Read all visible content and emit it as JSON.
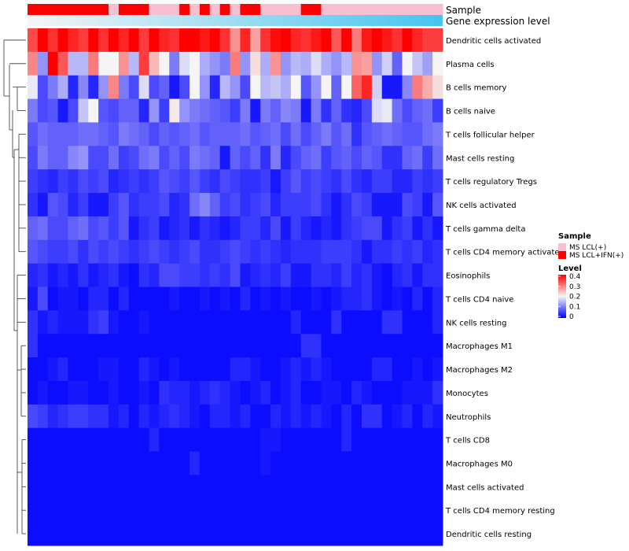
{
  "chart_data": {
    "type": "heatmap",
    "annotation_rows": [
      {
        "label": "Sample",
        "values": [
          "IFN",
          "IFN",
          "IFN",
          "IFN",
          "IFN",
          "IFN",
          "IFN",
          "IFN",
          "LCL",
          "IFN",
          "IFN",
          "IFN",
          "LCL",
          "LCL",
          "LCL",
          "IFN",
          "LCL",
          "IFN",
          "LCL",
          "IFN",
          "LCL",
          "IFN",
          "IFN",
          "LCL",
          "LCL",
          "LCL",
          "LCL",
          "IFN",
          "IFN",
          "LCL",
          "LCL",
          "LCL",
          "LCL",
          "LCL",
          "LCL",
          "LCL",
          "LCL",
          "LCL",
          "LCL",
          "LCL",
          "LCL"
        ]
      },
      {
        "label": "Gene expression level",
        "gradient": [
          "#f5f5f5",
          "#45c4ef"
        ]
      }
    ],
    "rows": [
      "Dendritic cells activated",
      "Plasma cells",
      "B cells memory",
      "B cells naive",
      "T cells follicular helper",
      "Mast cells resting",
      "T cells regulatory  Tregs",
      "NK cells activated",
      "T cells gamma delta",
      "T cells CD4 memory activated",
      "Eosinophils",
      "T cells CD4 naive",
      "NK cells resting",
      "Macrophages M1",
      "Macrophages M2",
      "Monocytes",
      "Neutrophils",
      "T cells CD8",
      "Macrophages M0",
      "Mast cells activated",
      "T cells CD4 memory resting",
      "Dendritic cells resting"
    ],
    "values": [
      [
        0.34,
        0.4,
        0.36,
        0.4,
        0.37,
        0.35,
        0.4,
        0.36,
        0.4,
        0.37,
        0.4,
        0.35,
        0.4,
        0.37,
        0.36,
        0.4,
        0.4,
        0.38,
        0.4,
        0.36,
        0.28,
        0.37,
        0.27,
        0.36,
        0.39,
        0.4,
        0.37,
        0.36,
        0.38,
        0.4,
        0.33,
        0.4,
        0.3,
        0.38,
        0.4,
        0.38,
        0.36,
        0.4,
        0.37,
        0.35,
        0.35
      ],
      [
        0.29,
        0.12,
        0.4,
        0.33,
        0.15,
        0.15,
        0.3,
        0.2,
        0.2,
        0.28,
        0.15,
        0.35,
        0.25,
        0.2,
        0.1,
        0.18,
        0.2,
        0.14,
        0.12,
        0.1,
        0.3,
        0.12,
        0.22,
        0.14,
        0.28,
        0.12,
        0.15,
        0.14,
        0.18,
        0.14,
        0.12,
        0.15,
        0.28,
        0.27,
        0.12,
        0.17,
        0.08,
        0.2,
        0.16,
        0.13,
        0.2
      ],
      [
        0.19,
        0.06,
        0.1,
        0.14,
        0.03,
        0.11,
        0.03,
        0.12,
        0.29,
        0.1,
        0.06,
        0.18,
        0.06,
        0.08,
        0.02,
        0.06,
        0.2,
        0.12,
        0.03,
        0.15,
        0.12,
        0.06,
        0.2,
        0.15,
        0.16,
        0.14,
        0.2,
        0.07,
        0.12,
        0.2,
        0.08,
        0.2,
        0.32,
        0.37,
        0.17,
        0.02,
        0.02,
        0.11,
        0.3,
        0.26,
        0.22
      ],
      [
        0.1,
        0.06,
        0.07,
        0.02,
        0.06,
        0.16,
        0.2,
        0.07,
        0.06,
        0.08,
        0.08,
        0.03,
        0.12,
        0.05,
        0.21,
        0.12,
        0.1,
        0.09,
        0.08,
        0.07,
        0.05,
        0.1,
        0.02,
        0.1,
        0.08,
        0.11,
        0.1,
        0.02,
        0.1,
        0.04,
        0.08,
        0.04,
        0.03,
        0.06,
        0.18,
        0.19,
        0.09,
        0.06,
        0.08,
        0.09,
        0.05
      ],
      [
        0.07,
        0.09,
        0.08,
        0.08,
        0.08,
        0.09,
        0.09,
        0.08,
        0.07,
        0.1,
        0.09,
        0.08,
        0.06,
        0.08,
        0.07,
        0.08,
        0.09,
        0.07,
        0.08,
        0.08,
        0.08,
        0.09,
        0.07,
        0.08,
        0.09,
        0.06,
        0.09,
        0.06,
        0.08,
        0.1,
        0.07,
        0.09,
        0.04,
        0.07,
        0.08,
        0.09,
        0.08,
        0.07,
        0.07,
        0.09,
        0.1
      ],
      [
        0.06,
        0.1,
        0.08,
        0.08,
        0.11,
        0.12,
        0.06,
        0.06,
        0.09,
        0.05,
        0.06,
        0.09,
        0.1,
        0.06,
        0.08,
        0.06,
        0.1,
        0.09,
        0.08,
        0.02,
        0.08,
        0.06,
        0.08,
        0.04,
        0.1,
        0.03,
        0.06,
        0.08,
        0.09,
        0.05,
        0.07,
        0.08,
        0.06,
        0.08,
        0.07,
        0.04,
        0.04,
        0.08,
        0.09,
        0.05,
        0.09
      ],
      [
        0.05,
        0.04,
        0.03,
        0.05,
        0.04,
        0.06,
        0.05,
        0.06,
        0.03,
        0.04,
        0.05,
        0.04,
        0.05,
        0.07,
        0.06,
        0.05,
        0.07,
        0.05,
        0.04,
        0.06,
        0.05,
        0.04,
        0.04,
        0.05,
        0.02,
        0.05,
        0.07,
        0.05,
        0.06,
        0.05,
        0.04,
        0.06,
        0.04,
        0.03,
        0.05,
        0.05,
        0.03,
        0.03,
        0.05,
        0.04,
        0.05
      ],
      [
        0.04,
        0.02,
        0.07,
        0.06,
        0.03,
        0.05,
        0.02,
        0.02,
        0.05,
        0.07,
        0.04,
        0.05,
        0.05,
        0.06,
        0.03,
        0.04,
        0.09,
        0.11,
        0.08,
        0.05,
        0.06,
        0.04,
        0.05,
        0.06,
        0.03,
        0.05,
        0.05,
        0.05,
        0.06,
        0.04,
        0.02,
        0.04,
        0.06,
        0.05,
        0.02,
        0.02,
        0.02,
        0.06,
        0.05,
        0.02,
        0.07
      ],
      [
        0.08,
        0.09,
        0.06,
        0.06,
        0.08,
        0.09,
        0.06,
        0.07,
        0.05,
        0.07,
        0.02,
        0.04,
        0.05,
        0.02,
        0.03,
        0.04,
        0.02,
        0.04,
        0.03,
        0.02,
        0.03,
        0.05,
        0.05,
        0.03,
        0.06,
        0.02,
        0.05,
        0.03,
        0.02,
        0.03,
        0.02,
        0.04,
        0.05,
        0.06,
        0.06,
        0.02,
        0.04,
        0.05,
        0.02,
        0.04,
        0.02
      ],
      [
        0.07,
        0.06,
        0.05,
        0.05,
        0.06,
        0.04,
        0.06,
        0.05,
        0.06,
        0.05,
        0.04,
        0.05,
        0.06,
        0.05,
        0.04,
        0.05,
        0.06,
        0.04,
        0.04,
        0.05,
        0.06,
        0.05,
        0.04,
        0.05,
        0.04,
        0.03,
        0.04,
        0.04,
        0.04,
        0.05,
        0.05,
        0.05,
        0.04,
        0.02,
        0.04,
        0.04,
        0.05,
        0.04,
        0.05,
        0.03,
        0.04
      ],
      [
        0.03,
        0.04,
        0.02,
        0.03,
        0.02,
        0.04,
        0.02,
        0.03,
        0.04,
        0.02,
        0.01,
        0.04,
        0.03,
        0.06,
        0.06,
        0.05,
        0.05,
        0.04,
        0.05,
        0.04,
        0.06,
        0.02,
        0.03,
        0.04,
        0.03,
        0.05,
        0.02,
        0.02,
        0.04,
        0.04,
        0.03,
        0.05,
        0.03,
        0.04,
        0.02,
        0.01,
        0.03,
        0.04,
        0.02,
        0.04,
        0.04
      ],
      [
        0.02,
        0.06,
        0.01,
        0.02,
        0.02,
        0.01,
        0.03,
        0.03,
        0.01,
        0.03,
        0.01,
        0.01,
        0.01,
        0.01,
        0.02,
        0.01,
        0.01,
        0.02,
        0.01,
        0.02,
        0.01,
        0.03,
        0.01,
        0.02,
        0.01,
        0.02,
        0.01,
        0.01,
        0.02,
        0.01,
        0.02,
        0.03,
        0.03,
        0.04,
        0.02,
        0.01,
        0.02,
        0.01,
        0.03,
        0.01,
        0.03
      ],
      [
        0.04,
        0.02,
        0.03,
        0.02,
        0.02,
        0.02,
        0.04,
        0.05,
        0.02,
        0.01,
        0.01,
        0.02,
        0.01,
        0.01,
        0.01,
        0.01,
        0.01,
        0.01,
        0.01,
        0.01,
        0.01,
        0.01,
        0.01,
        0.01,
        0.01,
        0.01,
        0.03,
        0.01,
        0.01,
        0.01,
        0.04,
        0.01,
        0.01,
        0.01,
        0.01,
        0.04,
        0.04,
        0.01,
        0.01,
        0.01,
        0.03
      ],
      [
        0.04,
        0.01,
        0.01,
        0.01,
        0.01,
        0.01,
        0.01,
        0.01,
        0.01,
        0.01,
        0.01,
        0.01,
        0.01,
        0.01,
        0.01,
        0.01,
        0.01,
        0.01,
        0.01,
        0.01,
        0.01,
        0.01,
        0.01,
        0.01,
        0.01,
        0.01,
        0.01,
        0.04,
        0.04,
        0.01,
        0.01,
        0.01,
        0.01,
        0.01,
        0.01,
        0.01,
        0.01,
        0.01,
        0.01,
        0.01,
        0.01
      ],
      [
        0.01,
        0.01,
        0.02,
        0.03,
        0.01,
        0.01,
        0.01,
        0.02,
        0.02,
        0.01,
        0.01,
        0.03,
        0.02,
        0.01,
        0.02,
        0.01,
        0.01,
        0.01,
        0.01,
        0.01,
        0.03,
        0.03,
        0.02,
        0.01,
        0.01,
        0.02,
        0.03,
        0.02,
        0.03,
        0.02,
        0.01,
        0.01,
        0.01,
        0.01,
        0.03,
        0.03,
        0.01,
        0.01,
        0.02,
        0.01,
        0.02
      ],
      [
        0.01,
        0.02,
        0.01,
        0.01,
        0.02,
        0.02,
        0.01,
        0.01,
        0.02,
        0.01,
        0.01,
        0.02,
        0.01,
        0.04,
        0.03,
        0.03,
        0.02,
        0.03,
        0.04,
        0.03,
        0.02,
        0.01,
        0.02,
        0.03,
        0.01,
        0.02,
        0.03,
        0.01,
        0.01,
        0.02,
        0.02,
        0.01,
        0.03,
        0.02,
        0.01,
        0.01,
        0.01,
        0.02,
        0.02,
        0.02,
        0.04
      ],
      [
        0.06,
        0.05,
        0.03,
        0.04,
        0.05,
        0.05,
        0.04,
        0.04,
        0.02,
        0.03,
        0.01,
        0.03,
        0.02,
        0.03,
        0.04,
        0.03,
        0.02,
        0.01,
        0.03,
        0.03,
        0.02,
        0.03,
        0.01,
        0.01,
        0.03,
        0.02,
        0.03,
        0.02,
        0.03,
        0.02,
        0.01,
        0.03,
        0.01,
        0.04,
        0.04,
        0.01,
        0.02,
        0.03,
        0.01,
        0.03,
        0.02
      ],
      [
        0.01,
        0.01,
        0.01,
        0.01,
        0.01,
        0.01,
        0.01,
        0.01,
        0.01,
        0.01,
        0.01,
        0.01,
        0.03,
        0.01,
        0.01,
        0.01,
        0.01,
        0.01,
        0.01,
        0.01,
        0.01,
        0.01,
        0.01,
        0.02,
        0.02,
        0.01,
        0.01,
        0.01,
        0.01,
        0.01,
        0.01,
        0.03,
        0.01,
        0.01,
        0.01,
        0.01,
        0.01,
        0.01,
        0.01,
        0.01,
        0.01
      ],
      [
        0.01,
        0.01,
        0.01,
        0.01,
        0.01,
        0.01,
        0.01,
        0.01,
        0.01,
        0.01,
        0.01,
        0.01,
        0.01,
        0.01,
        0.01,
        0.01,
        0.03,
        0.01,
        0.01,
        0.01,
        0.01,
        0.01,
        0.01,
        0.02,
        0.01,
        0.01,
        0.01,
        0.01,
        0.01,
        0.01,
        0.01,
        0.01,
        0.01,
        0.01,
        0.01,
        0.01,
        0.01,
        0.01,
        0.01,
        0.01,
        0.01
      ],
      [
        0.01,
        0.01,
        0.01,
        0.01,
        0.01,
        0.01,
        0.01,
        0.01,
        0.01,
        0.01,
        0.01,
        0.01,
        0.01,
        0.01,
        0.01,
        0.01,
        0.01,
        0.01,
        0.01,
        0.01,
        0.01,
        0.01,
        0.01,
        0.01,
        0.01,
        0.01,
        0.01,
        0.01,
        0.01,
        0.01,
        0.01,
        0.01,
        0.01,
        0.01,
        0.01,
        0.01,
        0.01,
        0.01,
        0.01,
        0.01,
        0.01
      ],
      [
        0.01,
        0.01,
        0.01,
        0.01,
        0.01,
        0.01,
        0.01,
        0.01,
        0.01,
        0.01,
        0.01,
        0.01,
        0.01,
        0.01,
        0.01,
        0.01,
        0.01,
        0.01,
        0.01,
        0.01,
        0.01,
        0.01,
        0.01,
        0.01,
        0.01,
        0.01,
        0.01,
        0.01,
        0.01,
        0.01,
        0.01,
        0.01,
        0.01,
        0.01,
        0.01,
        0.01,
        0.01,
        0.01,
        0.01,
        0.01,
        0.01
      ],
      [
        0.01,
        0.01,
        0.01,
        0.01,
        0.01,
        0.01,
        0.01,
        0.01,
        0.01,
        0.01,
        0.01,
        0.01,
        0.01,
        0.01,
        0.01,
        0.01,
        0.01,
        0.01,
        0.01,
        0.01,
        0.01,
        0.01,
        0.01,
        0.01,
        0.01,
        0.01,
        0.01,
        0.01,
        0.01,
        0.01,
        0.01,
        0.01,
        0.01,
        0.01,
        0.01,
        0.01,
        0.01,
        0.01,
        0.01,
        0.01,
        0.01
      ]
    ],
    "value_range": [
      0,
      0.4
    ],
    "color_stops": [
      "#0000ff",
      "#f5f5f5",
      "#ff0000"
    ],
    "legend": {
      "sample": {
        "title": "Sample",
        "entries": [
          {
            "key": "LCL",
            "label": "MS LCL(+)",
            "color": "#f7bfcf"
          },
          {
            "key": "IFN",
            "label": "MS LCL+IFN(+)",
            "color": "#ff0000"
          }
        ]
      },
      "level": {
        "title": "Level",
        "ticks": [
          "0.4",
          "0.3",
          "0.2",
          "0.1",
          "0"
        ]
      }
    }
  }
}
